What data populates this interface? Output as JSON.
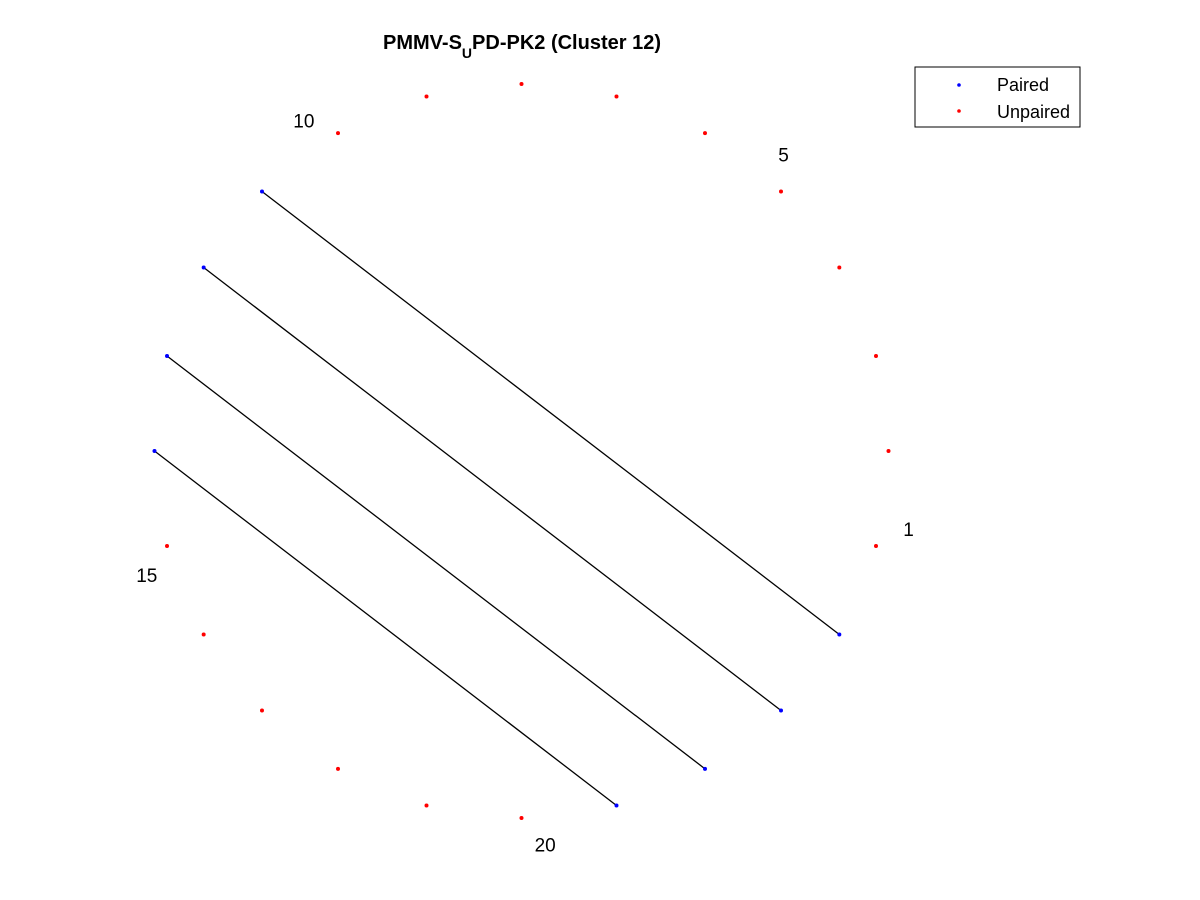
{
  "figure": {
    "title_main": "PMMV-S",
    "title_sub": "U",
    "title_rest": "PD-PK2 (Cluster 12)"
  },
  "legend": {
    "items": [
      {
        "label": "Paired",
        "color": "#0000ff"
      },
      {
        "label": "Unpaired",
        "color": "#ff0000"
      }
    ],
    "placement": "top-right"
  },
  "colors": {
    "paired": "#0000ff",
    "unpaired": "#ff0000",
    "arc": "#000000"
  },
  "chart_data": {
    "type": "circular-arc-diagram",
    "node_count": 24,
    "start_position": 1,
    "direction": "counterclockwise",
    "index_labels": [
      "1",
      "5",
      "10",
      "15",
      "20"
    ],
    "labeled_positions": [
      1,
      5,
      10,
      15,
      20
    ],
    "paired_positions": [
      11,
      12,
      13,
      14,
      21,
      22,
      23,
      24
    ],
    "unpaired_positions": [
      1,
      2,
      3,
      4,
      5,
      6,
      7,
      8,
      9,
      10,
      15,
      16,
      17,
      18,
      19,
      20
    ],
    "pairs": [
      [
        11,
        24
      ],
      [
        12,
        23
      ],
      [
        13,
        22
      ],
      [
        14,
        21
      ]
    ]
  }
}
